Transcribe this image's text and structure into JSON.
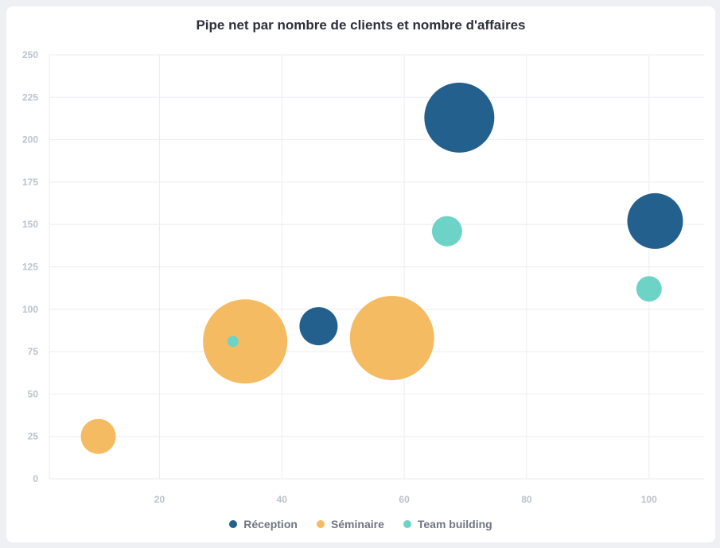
{
  "chart_data": {
    "type": "bubble",
    "title": "Pipe net par nombre de clients et nombre d'affaires",
    "xlabel": "",
    "ylabel": "",
    "xlim": [
      2,
      109
    ],
    "ylim": [
      0,
      250
    ],
    "x_ticks": [
      20,
      40,
      60,
      80,
      100
    ],
    "y_ticks": [
      0,
      25,
      50,
      75,
      100,
      125,
      150,
      175,
      200,
      225,
      250
    ],
    "grid": true,
    "legend_position": "bottom",
    "series": [
      {
        "name": "Réception",
        "color": "#24608d",
        "points": [
          {
            "x": 46,
            "y": 90,
            "size": 24
          },
          {
            "x": 69,
            "y": 213,
            "size": 44
          },
          {
            "x": 101,
            "y": 152,
            "size": 35
          }
        ]
      },
      {
        "name": "Séminaire",
        "color": "#f4bb62",
        "points": [
          {
            "x": 10,
            "y": 25,
            "size": 22
          },
          {
            "x": 34,
            "y": 81,
            "size": 53
          },
          {
            "x": 58,
            "y": 83,
            "size": 53
          }
        ]
      },
      {
        "name": "Team building",
        "color": "#6dd3c7",
        "points": [
          {
            "x": 32,
            "y": 81,
            "size": 7
          },
          {
            "x": 67,
            "y": 146,
            "size": 19
          },
          {
            "x": 100,
            "y": 112,
            "size": 16
          }
        ]
      }
    ]
  }
}
